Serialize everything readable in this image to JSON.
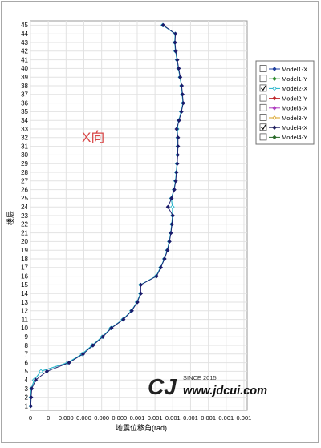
{
  "chart_data": {
    "type": "line",
    "ylabel": "楼层",
    "xlabel": "地震位移角(rad)",
    "annotation": "X向",
    "xlim": [
      0,
      0.00145
    ],
    "ylim": [
      1,
      45
    ],
    "grid": true,
    "legend_placement": "right",
    "x_ticks": [
      "0",
      "0",
      "0.000",
      "0.000",
      "0.000",
      "0.000",
      "0.001",
      "0.001",
      "0.001",
      "0.001",
      "0.001",
      "0.001",
      "0.001"
    ],
    "y_ticks": [
      "1",
      "2",
      "3",
      "4",
      "5",
      "6",
      "7",
      "8",
      "9",
      "10",
      "11",
      "12",
      "13",
      "14",
      "15",
      "16",
      "17",
      "18",
      "19",
      "20",
      "21",
      "22",
      "23",
      "24",
      "25",
      "26",
      "27",
      "28",
      "29",
      "30",
      "31",
      "32",
      "33",
      "34",
      "35",
      "36",
      "37",
      "38",
      "39",
      "40",
      "41",
      "42",
      "43",
      "44",
      "45"
    ],
    "legend": [
      {
        "label": "Model1-X",
        "checked": false,
        "color": "#1f3f9f",
        "marker": "diamond"
      },
      {
        "label": "Model1-Y",
        "checked": false,
        "color": "#2e8b2e",
        "marker": "diamond"
      },
      {
        "label": "Model2-X",
        "checked": true,
        "color": "#20b2c8",
        "marker": "diamond-open"
      },
      {
        "label": "Model2-Y",
        "checked": false,
        "color": "#c0282c",
        "marker": "diamond"
      },
      {
        "label": "Model3-X",
        "checked": false,
        "color": "#b040c0",
        "marker": "diamond"
      },
      {
        "label": "Model3-Y",
        "checked": false,
        "color": "#d8a020",
        "marker": "diamond-open"
      },
      {
        "label": "Model4-X",
        "checked": true,
        "color": "#202060",
        "marker": "diamond"
      },
      {
        "label": "Model4-Y",
        "checked": false,
        "color": "#2a6a2a",
        "marker": "diamond"
      }
    ],
    "series": [
      {
        "name": "Model2-X",
        "color": "#20b2c8",
        "floors": [
          1,
          2,
          3,
          4,
          5,
          6,
          7,
          8,
          9,
          10,
          11,
          12,
          13,
          14,
          15,
          16,
          17,
          18,
          19,
          20,
          21,
          22,
          23,
          24,
          25,
          26,
          27,
          28,
          29,
          30,
          31,
          32,
          33,
          34,
          35,
          36,
          37,
          38,
          39,
          40,
          41,
          42,
          43,
          44,
          45
        ],
        "values": [
          5e-07,
          2e-06,
          5e-06,
          2.5e-05,
          7e-05,
          0.000248,
          0.000345,
          0.000412,
          0.00048,
          0.000538,
          0.000618,
          0.000675,
          0.000712,
          0.000735,
          0.000735,
          0.00084,
          0.00087,
          0.000895,
          0.000915,
          0.000928,
          0.000938,
          0.000945,
          0.00095,
          0.00095,
          0.000942,
          0.00096,
          0.00097,
          0.000975,
          0.00098,
          0.000983,
          0.000985,
          0.000985,
          0.000982,
          0.000992,
          0.001008,
          0.00102,
          0.001015,
          0.00101,
          0.001,
          0.00099,
          0.00098,
          0.00097,
          0.000965,
          0.000968,
          0.000885
        ]
      },
      {
        "name": "Model4-X",
        "color": "#1a1a6a",
        "floors": [
          1,
          2,
          3,
          4,
          5,
          6,
          7,
          8,
          9,
          10,
          11,
          12,
          13,
          14,
          15,
          16,
          17,
          18,
          19,
          20,
          21,
          22,
          23,
          24,
          25,
          26,
          27,
          28,
          29,
          30,
          31,
          32,
          33,
          34,
          35,
          36,
          37,
          38,
          39,
          40,
          41,
          42,
          43,
          44,
          45
        ],
        "values": [
          2e-06,
          4.5e-06,
          8.5e-06,
          3.5e-05,
          0.00011,
          0.000258,
          0.000352,
          0.000418,
          0.000485,
          0.000542,
          0.000622,
          0.000678,
          0.000715,
          0.000738,
          0.000738,
          0.000844,
          0.000872,
          0.000897,
          0.000917,
          0.00093,
          0.00094,
          0.000947,
          0.000952,
          0.00092,
          0.000944,
          0.000962,
          0.000972,
          0.000977,
          0.000982,
          0.000985,
          0.000987,
          0.000987,
          0.000978,
          0.000994,
          0.00101,
          0.001022,
          0.001017,
          0.001012,
          0.001002,
          0.000992,
          0.000982,
          0.000972,
          0.000967,
          0.00097,
          0.000888
        ]
      }
    ]
  },
  "watermark": {
    "logo_text": "CJ",
    "since": "SINCE 2015",
    "site": "www.jdcui.com"
  }
}
